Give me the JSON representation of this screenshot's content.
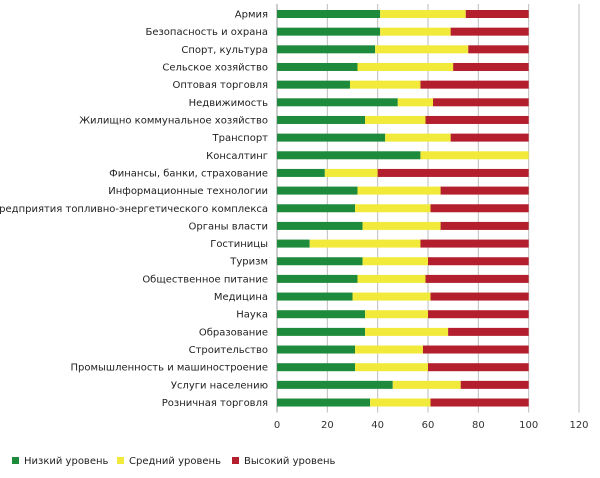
{
  "chart_data": {
    "type": "bar",
    "orientation": "horizontal",
    "stacked": true,
    "categories": [
      "Армия",
      "Безопасность и охрана",
      "Спорт, культура",
      "Сельское хозяйство",
      "Оптовая торговля",
      "Недвижимость",
      "Жилищно коммунальное хозяйство",
      "Транспорт",
      "Консалтинг",
      "Финансы, банки, страхование",
      "Информационные технологии",
      "Предприятия топливно-энергетического комплекса",
      "Органы власти",
      "Гостиницы",
      "Туризм",
      "Общественное питание",
      "Медицина",
      "Наука",
      "Образование",
      "Строительство",
      "Промышленность и машиностроение",
      "Услуги населению",
      "Розничная торговля"
    ],
    "series": [
      {
        "name": "Низкий уровень",
        "color": "#1e8b3c",
        "values": [
          41,
          41,
          39,
          32,
          29,
          48,
          35,
          43,
          57,
          19,
          32,
          31,
          34,
          13,
          34,
          32,
          30,
          35,
          35,
          31,
          31,
          46,
          37
        ]
      },
      {
        "name": "Средний уровень",
        "color": "#f2ea3b",
        "values": [
          34,
          28,
          37,
          38,
          28,
          14,
          24,
          26,
          43,
          21,
          33,
          30,
          31,
          44,
          26,
          27,
          31,
          25,
          33,
          27,
          29,
          27,
          24
        ]
      },
      {
        "name": "Высокий уровень",
        "color": "#b41f2e",
        "values": [
          25,
          31,
          24,
          30,
          43,
          38,
          41,
          31,
          0,
          60,
          35,
          39,
          35,
          43,
          40,
          41,
          39,
          40,
          32,
          42,
          40,
          27,
          39
        ]
      }
    ],
    "xlim": [
      0,
      120
    ],
    "xticks": [
      0,
      20,
      40,
      60,
      80,
      100,
      120
    ],
    "grid": true,
    "legend_position": "bottom-left"
  }
}
